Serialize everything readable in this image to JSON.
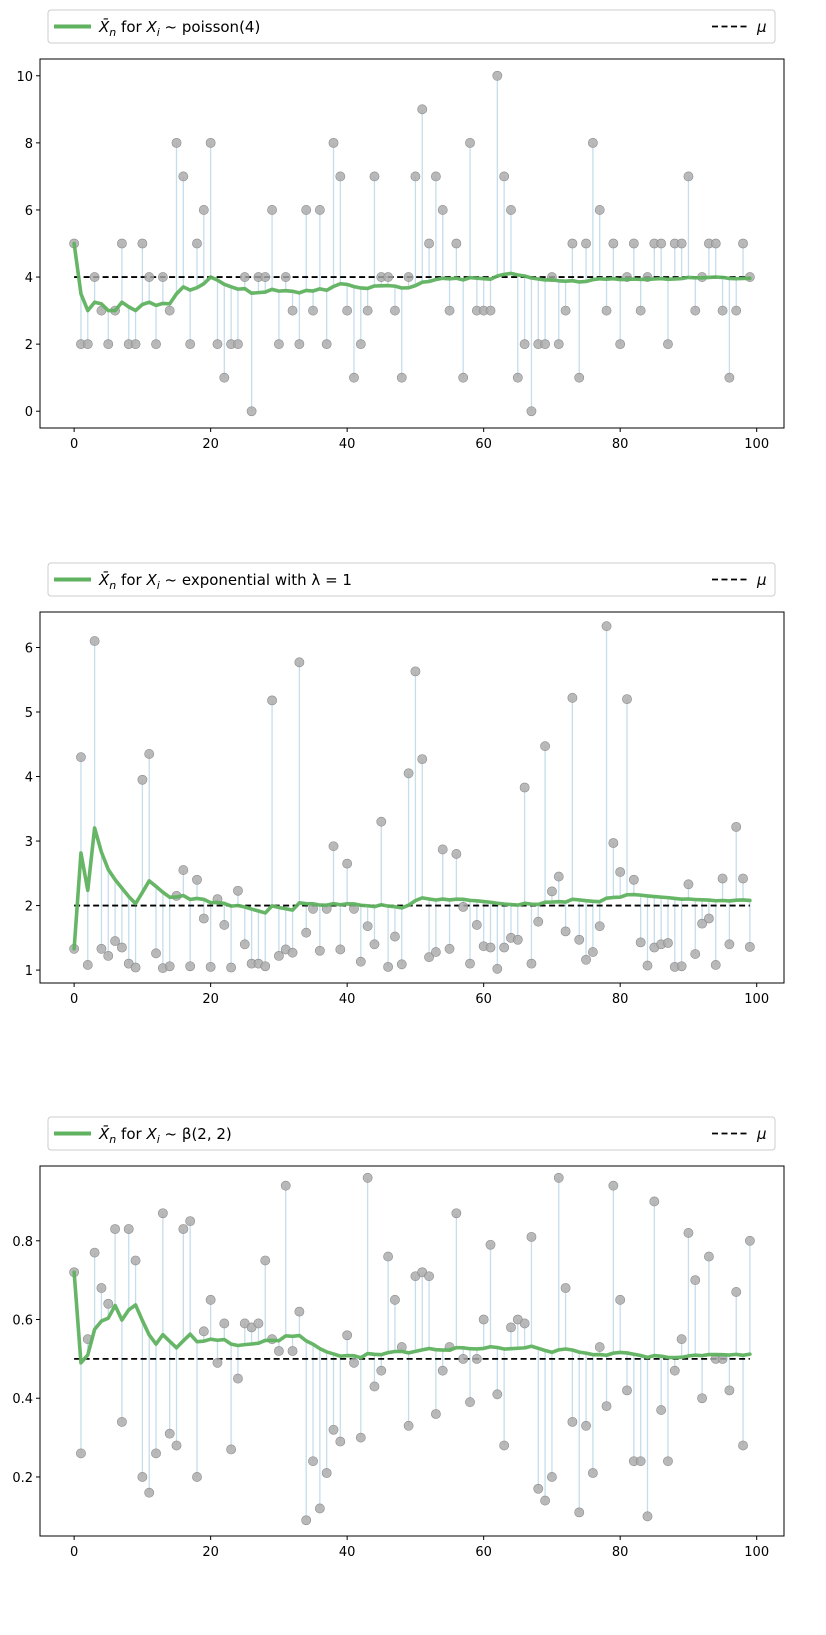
{
  "chart_data": [
    {
      "type": "scatter",
      "legend": {
        "line_label": "X̄n for Xi ~ poisson(4)",
        "mu_label": "μ",
        "placement": "top, above plot"
      },
      "colors": {
        "mean_line": "#5fb25f",
        "points": "#a9a9a9",
        "stems": "#c6ddec",
        "mu_line": "#000000"
      },
      "mu": 4,
      "xlim": [
        -5,
        104
      ],
      "ylim": [
        -0.5,
        10.5
      ],
      "xticks": [
        0,
        20,
        40,
        60,
        80,
        100
      ],
      "yticks": [
        0,
        2,
        4,
        6,
        8,
        10
      ],
      "xtick_labels": [
        "0",
        "20",
        "40",
        "60",
        "80",
        "100"
      ],
      "ytick_labels": [
        "0",
        "2",
        "4",
        "6",
        "8",
        "10"
      ],
      "samples": [
        5,
        2,
        2,
        4,
        3,
        2,
        3,
        5,
        2,
        2,
        5,
        4,
        2,
        4,
        3,
        8,
        7,
        2,
        5,
        6,
        8,
        2,
        1,
        2,
        2,
        4,
        0,
        4,
        4,
        6,
        2,
        4,
        3,
        2,
        6,
        3,
        6,
        2,
        8,
        7,
        3,
        1,
        2,
        3,
        7,
        4,
        4,
        3,
        1,
        4,
        7,
        9,
        5,
        7,
        6,
        3,
        5,
        1,
        8,
        3,
        3,
        3,
        10,
        7,
        6,
        1,
        2,
        0,
        2,
        2,
        4,
        2,
        3,
        5,
        1,
        5,
        8,
        6,
        3,
        5,
        2,
        4,
        5,
        3,
        4,
        5,
        5,
        2,
        5,
        5,
        7,
        3,
        4,
        5,
        5,
        3,
        1,
        3,
        5,
        4
      ]
    },
    {
      "type": "scatter",
      "legend": {
        "line_label": "X̄n for Xi ~ exponential with λ = 1",
        "mu_label": "μ",
        "placement": "top, above plot"
      },
      "colors": {
        "mean_line": "#5fb25f",
        "points": "#a9a9a9",
        "stems": "#c6ddec",
        "mu_line": "#000000"
      },
      "mu": 2,
      "xlim": [
        -5,
        104
      ],
      "ylim": [
        0.8,
        6.55
      ],
      "xticks": [
        0,
        20,
        40,
        60,
        80,
        100
      ],
      "yticks": [
        1,
        2,
        3,
        4,
        5,
        6
      ],
      "xtick_labels": [
        "0",
        "20",
        "40",
        "60",
        "80",
        "100"
      ],
      "ytick_labels": [
        "1",
        "2",
        "3",
        "4",
        "5",
        "6"
      ],
      "samples": [
        1.33,
        4.3,
        1.08,
        6.1,
        1.33,
        1.22,
        1.45,
        1.35,
        1.1,
        1.04,
        3.95,
        4.35,
        1.26,
        1.03,
        1.06,
        2.15,
        2.55,
        1.06,
        2.4,
        1.8,
        1.05,
        2.1,
        1.7,
        1.04,
        2.23,
        1.4,
        1.1,
        1.1,
        1.06,
        5.18,
        1.22,
        1.32,
        1.27,
        5.77,
        1.58,
        1.95,
        1.3,
        1.95,
        2.92,
        1.32,
        2.65,
        1.95,
        1.13,
        1.68,
        1.4,
        3.3,
        1.05,
        1.52,
        1.09,
        4.05,
        5.63,
        4.27,
        1.2,
        1.28,
        2.87,
        1.33,
        2.8,
        1.98,
        1.1,
        1.7,
        1.37,
        1.35,
        1.02,
        1.35,
        1.5,
        1.47,
        3.83,
        1.1,
        1.75,
        4.47,
        2.22,
        2.45,
        1.6,
        5.22,
        1.47,
        1.16,
        1.28,
        1.68,
        6.33,
        2.97,
        2.52,
        5.2,
        2.4,
        1.43,
        1.07,
        1.35,
        1.4,
        1.42,
        1.05,
        1.06,
        2.33,
        1.25,
        1.72,
        1.8,
        1.08,
        2.42,
        1.4,
        3.22,
        2.42,
        1.36
      ]
    },
    {
      "type": "scatter",
      "legend": {
        "line_label": "X̄n for Xi ~ β(2, 2)",
        "mu_label": "μ",
        "placement": "top, above plot"
      },
      "colors": {
        "mean_line": "#5fb25f",
        "points": "#a9a9a9",
        "stems": "#c6ddec",
        "mu_line": "#000000"
      },
      "mu": 0.5,
      "xlim": [
        -5,
        104
      ],
      "ylim": [
        0.05,
        0.99
      ],
      "xticks": [
        0,
        20,
        40,
        60,
        80,
        100
      ],
      "yticks": [
        0.2,
        0.4,
        0.6,
        0.8
      ],
      "xtick_labels": [
        "0",
        "20",
        "40",
        "60",
        "80",
        "100"
      ],
      "ytick_labels": [
        "0.2",
        "0.4",
        "0.6",
        "0.8"
      ],
      "samples": [
        0.72,
        0.26,
        0.55,
        0.77,
        0.68,
        0.64,
        0.83,
        0.34,
        0.83,
        0.75,
        0.2,
        0.16,
        0.26,
        0.87,
        0.31,
        0.28,
        0.83,
        0.85,
        0.2,
        0.57,
        0.65,
        0.49,
        0.59,
        0.27,
        0.45,
        0.59,
        0.58,
        0.59,
        0.75,
        0.55,
        0.52,
        0.94,
        0.52,
        0.62,
        0.09,
        0.24,
        0.12,
        0.21,
        0.32,
        0.29,
        0.56,
        0.49,
        0.3,
        0.96,
        0.43,
        0.47,
        0.76,
        0.65,
        0.53,
        0.33,
        0.71,
        0.72,
        0.71,
        0.36,
        0.47,
        0.53,
        0.87,
        0.5,
        0.39,
        0.5,
        0.6,
        0.79,
        0.41,
        0.28,
        0.58,
        0.6,
        0.59,
        0.81,
        0.17,
        0.14,
        0.2,
        0.96,
        0.68,
        0.34,
        0.11,
        0.33,
        0.21,
        0.53,
        0.38,
        0.94,
        0.65,
        0.42,
        0.24,
        0.24,
        0.1,
        0.9,
        0.37,
        0.24,
        0.47,
        0.55,
        0.82,
        0.7,
        0.4,
        0.76,
        0.5,
        0.5,
        0.42,
        0.67,
        0.28,
        0.8
      ]
    }
  ]
}
